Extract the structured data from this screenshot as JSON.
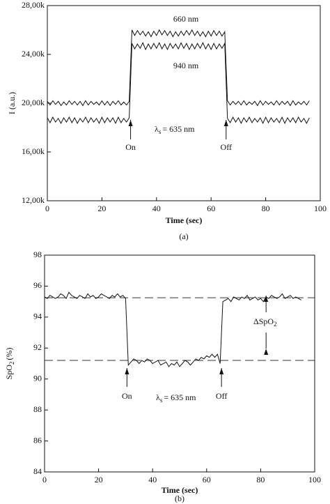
{
  "chart_data": [
    {
      "type": "line",
      "xlabel": "Time (sec)",
      "ylabel": "I (a.u.)",
      "caption": "(a)",
      "x": [
        0,
        1,
        2,
        3,
        4,
        5,
        6,
        7,
        8,
        9,
        10,
        11,
        12,
        13,
        14,
        15,
        16,
        17,
        18,
        19,
        20,
        21,
        22,
        23,
        24,
        25,
        26,
        27,
        28,
        29,
        30,
        31,
        32,
        33,
        34,
        35,
        36,
        37,
        38,
        39,
        40,
        41,
        42,
        43,
        44,
        45,
        46,
        47,
        48,
        49,
        50,
        51,
        52,
        53,
        54,
        55,
        56,
        57,
        58,
        59,
        60,
        61,
        62,
        63,
        64,
        65,
        66,
        67,
        68,
        69,
        70,
        71,
        72,
        73,
        74,
        75,
        76,
        77,
        78,
        79,
        80,
        81,
        82,
        83,
        84,
        85,
        86,
        87,
        88,
        89,
        90,
        91,
        92,
        93,
        94,
        95,
        96
      ],
      "series": [
        {
          "name": "660 nm",
          "color": "#111111",
          "values": [
            20150,
            19850,
            20200,
            19900,
            20150,
            19800,
            20100,
            19850,
            20200,
            19900,
            20150,
            19850,
            20150,
            19800,
            20200,
            19850,
            20150,
            19900,
            20100,
            19850,
            20200,
            19850,
            20150,
            19800,
            20150,
            19900,
            20200,
            19850,
            20100,
            19850,
            20150,
            26000,
            25550,
            25950,
            25600,
            25900,
            25500,
            25850,
            25450,
            25900,
            25550,
            26000,
            25600,
            25950,
            25550,
            25900,
            25450,
            25850,
            25500,
            25900,
            25550,
            25950,
            25600,
            26000,
            25550,
            25900,
            25500,
            25850,
            25450,
            25900,
            25500,
            25950,
            25550,
            25900,
            25500,
            25850,
            20200,
            19850,
            20150,
            19900,
            20150,
            19850,
            20200,
            19850,
            20100,
            19900,
            20150,
            19800,
            20200,
            19850,
            20150,
            19900,
            20100,
            19850,
            20200,
            19850,
            20150,
            19900,
            20150,
            19800,
            20200,
            19850,
            20100,
            19900,
            20150,
            19850,
            20200
          ]
        },
        {
          "name": "940 nm",
          "color": "#111111",
          "values": [
            18800,
            18400,
            18850,
            18450,
            18750,
            18350,
            18800,
            18450,
            18850,
            18400,
            18800,
            18350,
            18750,
            18450,
            18850,
            18400,
            18800,
            18450,
            18750,
            18350,
            18850,
            18400,
            18800,
            18450,
            18800,
            18350,
            18850,
            18400,
            18750,
            18450,
            18800,
            24900,
            24450,
            24850,
            24500,
            24950,
            24400,
            24850,
            24450,
            24900,
            24500,
            24950,
            24450,
            24850,
            24400,
            24900,
            24500,
            24850,
            24450,
            24950,
            24500,
            24900,
            24400,
            24850,
            24450,
            24900,
            24500,
            24950,
            24450,
            24850,
            24400,
            24900,
            24450,
            24850,
            24500,
            24900,
            18750,
            18400,
            18850,
            18450,
            18800,
            18350,
            18800,
            18450,
            18850,
            18400,
            18750,
            18450,
            18800,
            18350,
            18850,
            18400,
            18800,
            18450,
            18750,
            18400,
            18850,
            18350,
            18800,
            18450,
            18800,
            18400,
            18850,
            18450,
            18750,
            18350,
            18800
          ]
        }
      ],
      "xlim": [
        0,
        100
      ],
      "xticks": [
        0,
        20,
        40,
        60,
        80,
        100
      ],
      "ylim": [
        12000,
        28000
      ],
      "yticks": [
        {
          "value": 12000,
          "label": "12,00k"
        },
        {
          "value": 16000,
          "label": "16,00k"
        },
        {
          "value": 20000,
          "label": "20,00k"
        },
        {
          "value": 24000,
          "label": "24,00k"
        },
        {
          "value": 28000,
          "label": "28,00k"
        }
      ],
      "annotations": {
        "lambda": {
          "symbol": "λ",
          "sub": "s",
          "text": "= 635 nm"
        },
        "on": "On",
        "off": "Off"
      }
    },
    {
      "type": "line",
      "xlabel": "Time (sec)",
      "ylabel": {
        "text": "SpO",
        "sub": "2",
        "unit": "(%)"
      },
      "caption": "(b)",
      "x": [
        0,
        1,
        2,
        3,
        4,
        5,
        6,
        7,
        8,
        9,
        10,
        11,
        12,
        13,
        14,
        15,
        16,
        17,
        18,
        19,
        20,
        21,
        22,
        23,
        24,
        25,
        26,
        27,
        28,
        29,
        30,
        31,
        32,
        33,
        34,
        35,
        36,
        37,
        38,
        39,
        40,
        41,
        42,
        43,
        44,
        45,
        46,
        47,
        48,
        49,
        50,
        51,
        52,
        53,
        54,
        55,
        56,
        57,
        58,
        59,
        60,
        61,
        62,
        63,
        64,
        65,
        66,
        67,
        68,
        69,
        70,
        71,
        72,
        73,
        74,
        75,
        76,
        77,
        78,
        79,
        80,
        81,
        82,
        83,
        84,
        85,
        86,
        87,
        88,
        89,
        90,
        91,
        92,
        93,
        94,
        95
      ],
      "series": [
        {
          "color": "#111111",
          "values": [
            95.3,
            95.2,
            95.4,
            95.3,
            95.2,
            95.3,
            95.5,
            95.4,
            95.2,
            95.6,
            95.4,
            95.3,
            95.2,
            95.4,
            95.3,
            95.2,
            95.5,
            95.3,
            95.4,
            95.2,
            95.3,
            95.5,
            95.4,
            95.3,
            95.2,
            95.4,
            95.3,
            95.5,
            95.3,
            95.4,
            95.2,
            90.9,
            91.1,
            91.3,
            91.2,
            91.0,
            91.2,
            91.1,
            91.3,
            91.2,
            91.0,
            91.1,
            91.2,
            90.9,
            91.0,
            91.1,
            90.8,
            91.0,
            90.9,
            91.1,
            90.8,
            91.0,
            91.2,
            91.1,
            90.9,
            91.1,
            91.3,
            91.2,
            91.4,
            91.3,
            91.5,
            91.4,
            91.6,
            91.4,
            91.6,
            91.0,
            95.0,
            95.1,
            95.2,
            95.0,
            95.3,
            95.2,
            95.1,
            95.3,
            95.2,
            95.4,
            95.1,
            95.2,
            95.3,
            95.1,
            95.2,
            95.0,
            95.3,
            95.2,
            95.4,
            95.3,
            95.2,
            95.3,
            95.5,
            95.2,
            95.3,
            95.4,
            95.2,
            95.3,
            95.2,
            95.1
          ]
        }
      ],
      "reference_lines": [
        95.25,
        91.2
      ],
      "xlim": [
        0,
        100
      ],
      "xticks": [
        0,
        20,
        40,
        60,
        80,
        100
      ],
      "ylim": [
        84,
        98
      ],
      "yticks": [
        84,
        86,
        88,
        90,
        92,
        94,
        96,
        98
      ],
      "annotations": {
        "lambda": {
          "symbol": "λ",
          "sub": "s",
          "text": "= 635 nm"
        },
        "on": "On",
        "off": "Off",
        "delta": {
          "text": "ΔSpO",
          "sub": "2"
        }
      }
    }
  ]
}
